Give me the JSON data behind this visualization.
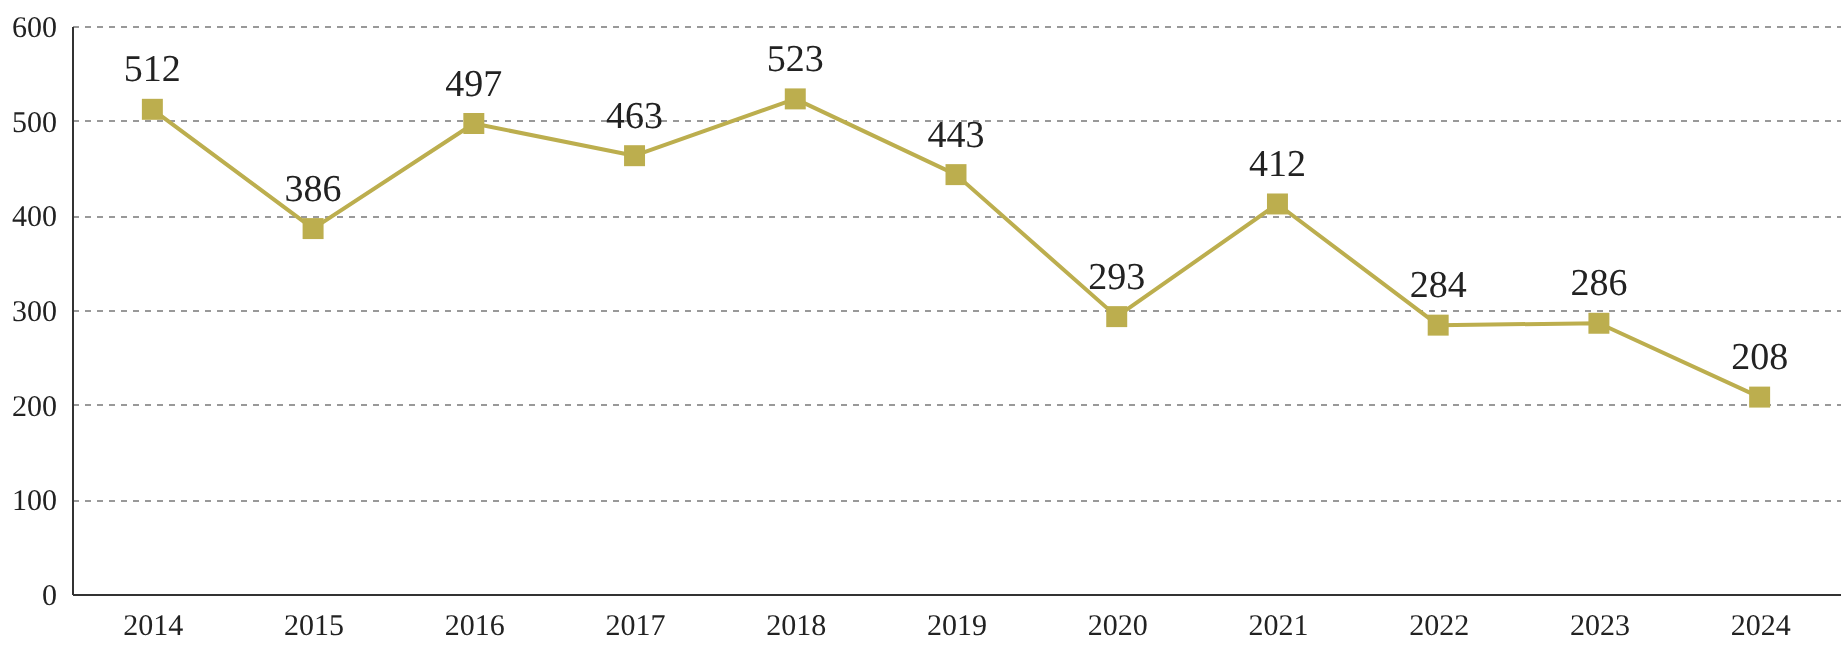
{
  "chart_data": {
    "type": "line",
    "categories": [
      "2014",
      "2015",
      "2016",
      "2017",
      "2018",
      "2019",
      "2020",
      "2021",
      "2022",
      "2023",
      "2024"
    ],
    "series": [
      {
        "color": "#bcae4e",
        "values": [
          512,
          386,
          497,
          463,
          523,
          443,
          293,
          412,
          284,
          286,
          208
        ]
      }
    ],
    "ylim": [
      0,
      600
    ],
    "yticks": [
      0,
      100,
      200,
      300,
      400,
      500,
      600
    ],
    "grid": "y",
    "marker": "square",
    "line_style": "solid",
    "data_labels": true,
    "legend": false
  }
}
